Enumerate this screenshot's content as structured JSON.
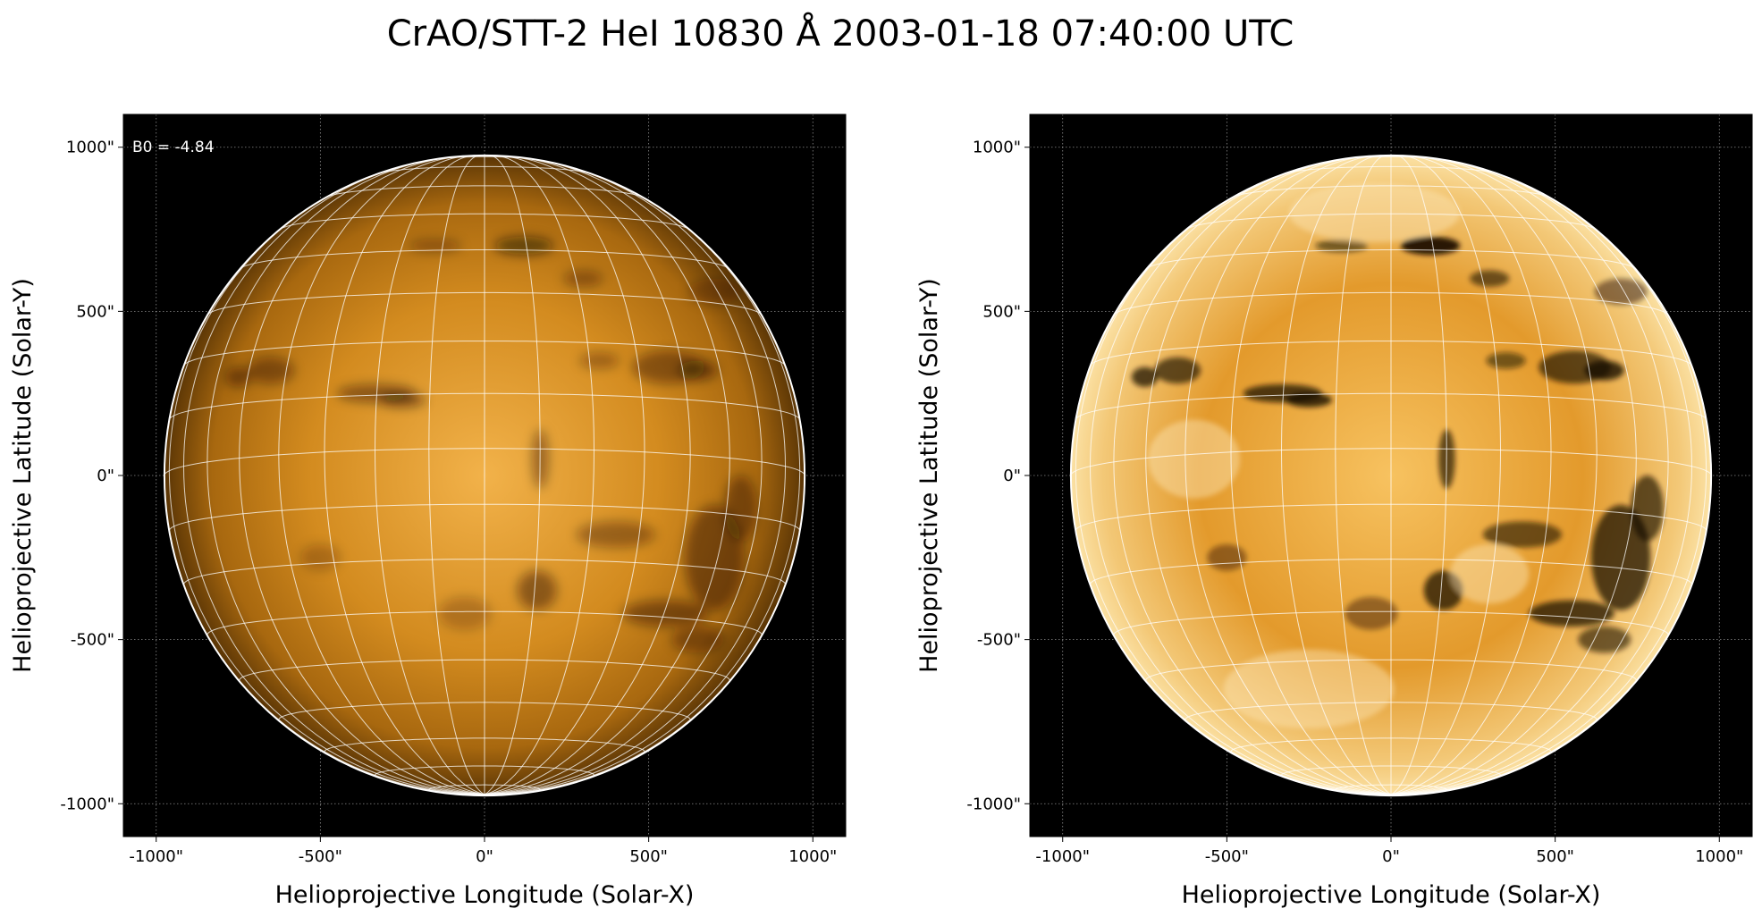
{
  "title": "CrAO/STT-2 HeI 10830 Å 2003-01-18 07:40:00 UTC",
  "colors": {
    "background": "#000000",
    "disk_dark": "#3a2200",
    "disk_mid": "#c88419",
    "disk_light": "#f0b349",
    "limb": "#ffffff",
    "grid": "#ffffff"
  },
  "chart_data": [
    {
      "type": "heatmap",
      "title": "",
      "xlabel": "Helioprojective Longitude (Solar-X)",
      "ylabel": "Helioprojective Latitude (Solar-Y)",
      "xlim": [
        -1100,
        1100
      ],
      "ylim": [
        -1100,
        1100
      ],
      "xticks": [
        -1000,
        -500,
        0,
        500,
        1000
      ],
      "yticks": [
        -1000,
        -500,
        0,
        500,
        1000
      ],
      "xtick_labels": [
        "-1000\"",
        "-500\"",
        "0\"",
        "500\"",
        "1000\""
      ],
      "ytick_labels": [
        "-1000\"",
        "-500\"",
        "0\"",
        "500\"",
        "1000\""
      ],
      "annotation": "B0 = -4.84",
      "b0_deg": -4.84,
      "solar_radius_arcsec": 975,
      "colormap": "orange (HeI 10830)",
      "contrast": "normal",
      "grid": true,
      "heliographic_grid_spacing_deg": 10
    },
    {
      "type": "heatmap",
      "title": "",
      "xlabel": "Helioprojective Longitude (Solar-X)",
      "ylabel": "Helioprojective Latitude (Solar-Y)",
      "xlim": [
        -1100,
        1100
      ],
      "ylim": [
        -1100,
        1100
      ],
      "xticks": [
        -1000,
        -500,
        0,
        500,
        1000
      ],
      "yticks": [
        -1000,
        -500,
        0,
        500,
        1000
      ],
      "xtick_labels": [
        "-1000\"",
        "-500\"",
        "0\"",
        "500\"",
        "1000\""
      ],
      "ytick_labels": [
        "-1000\"",
        "-500\"",
        "0\"",
        "500\"",
        "1000\""
      ],
      "b0_deg": -4.84,
      "solar_radius_arcsec": 975,
      "colormap": "orange (HeI 10830)",
      "contrast": "enhanced",
      "grid": true,
      "heliographic_grid_spacing_deg": 10
    }
  ]
}
